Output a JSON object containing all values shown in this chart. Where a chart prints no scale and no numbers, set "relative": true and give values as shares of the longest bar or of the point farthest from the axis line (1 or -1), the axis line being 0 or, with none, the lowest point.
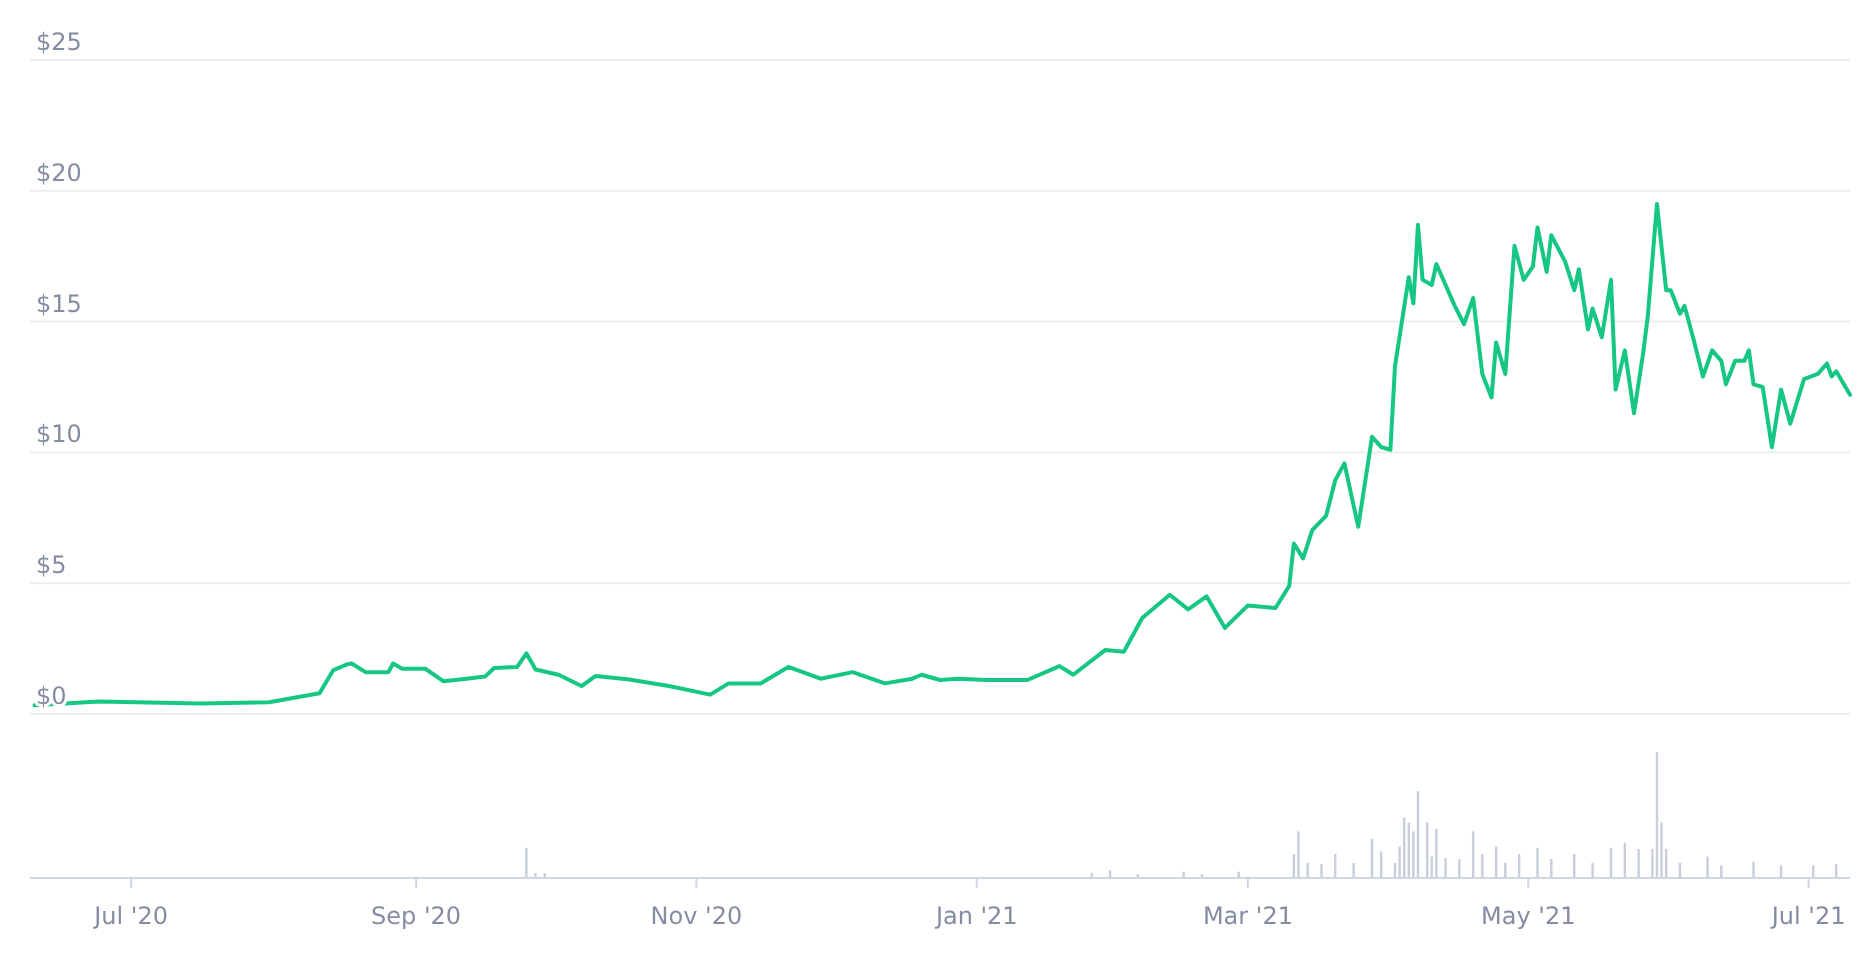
{
  "chart_data": [
    {
      "type": "line",
      "xlim": [
        "2020-06-09",
        "2021-07-10"
      ],
      "ylim": [
        0,
        25
      ],
      "yticks": [
        {
          "value": 0,
          "label": "$0"
        },
        {
          "value": 5,
          "label": "$5"
        },
        {
          "value": 10,
          "label": "$10"
        },
        {
          "value": 15,
          "label": "$15"
        },
        {
          "value": 20,
          "label": "$20"
        },
        {
          "value": 25,
          "label": "$25"
        }
      ],
      "grid": "y",
      "tick_labels": "y",
      "series": [
        {
          "color": "#16c784",
          "x": [
            "2020-06-10",
            "2020-06-24",
            "2020-07-16",
            "2020-07-31",
            "2020-08-11",
            "2020-08-14",
            "2020-08-17",
            "2020-08-18",
            "2020-08-21",
            "2020-08-26",
            "2020-08-27",
            "2020-08-29",
            "2020-09-03",
            "2020-09-07",
            "2020-09-12",
            "2020-09-16",
            "2020-09-18",
            "2020-09-23",
            "2020-09-25",
            "2020-09-27",
            "2020-10-02",
            "2020-10-07",
            "2020-10-10",
            "2020-10-17",
            "2020-10-26",
            "2020-11-04",
            "2020-11-08",
            "2020-11-15",
            "2020-11-21",
            "2020-11-28",
            "2020-12-05",
            "2020-12-12",
            "2020-12-18",
            "2020-12-20",
            "2020-12-24",
            "2020-12-28",
            "2021-01-03",
            "2021-01-12",
            "2021-01-19",
            "2021-01-22",
            "2021-01-29",
            "2021-02-02",
            "2021-02-06",
            "2021-02-12",
            "2021-02-16",
            "2021-02-20",
            "2021-02-24",
            "2021-03-01",
            "2021-03-07",
            "2021-03-10",
            "2021-03-11",
            "2021-03-13",
            "2021-03-15",
            "2021-03-18",
            "2021-03-20",
            "2021-03-22",
            "2021-03-25",
            "2021-03-28",
            "2021-03-30",
            "2021-04-01",
            "2021-04-02",
            "2021-04-05",
            "2021-04-06",
            "2021-04-07",
            "2021-04-08",
            "2021-04-10",
            "2021-04-11",
            "2021-04-15",
            "2021-04-17",
            "2021-04-19",
            "2021-04-21",
            "2021-04-23",
            "2021-04-24",
            "2021-04-26",
            "2021-04-28",
            "2021-04-30",
            "2021-05-02",
            "2021-05-03",
            "2021-05-05",
            "2021-05-06",
            "2021-05-09",
            "2021-05-11",
            "2021-05-12",
            "2021-05-14",
            "2021-05-15",
            "2021-05-17",
            "2021-05-19",
            "2021-05-20",
            "2021-05-22",
            "2021-05-24",
            "2021-05-26",
            "2021-05-27",
            "2021-05-29",
            "2021-05-31",
            "2021-06-01",
            "2021-06-03",
            "2021-06-04",
            "2021-06-06",
            "2021-06-08",
            "2021-06-10",
            "2021-06-12",
            "2021-06-13",
            "2021-06-15",
            "2021-06-17",
            "2021-06-18",
            "2021-06-19",
            "2021-06-21",
            "2021-06-23",
            "2021-06-25",
            "2021-06-27",
            "2021-06-30",
            "2021-07-03",
            "2021-07-05",
            "2021-07-06",
            "2021-07-07",
            "2021-07-10"
          ],
          "values": [
            0.33,
            0.48,
            0.4,
            0.45,
            0.79,
            1.68,
            1.9,
            1.93,
            1.6,
            1.6,
            1.93,
            1.73,
            1.73,
            1.25,
            1.35,
            1.43,
            1.76,
            1.8,
            2.32,
            1.7,
            1.5,
            1.07,
            1.45,
            1.33,
            1.07,
            0.74,
            1.17,
            1.17,
            1.8,
            1.35,
            1.6,
            1.17,
            1.35,
            1.5,
            1.3,
            1.35,
            1.3,
            1.3,
            1.83,
            1.5,
            2.45,
            2.38,
            3.67,
            4.56,
            4.0,
            4.5,
            3.29,
            4.15,
            4.05,
            4.9,
            6.52,
            5.95,
            7.03,
            7.57,
            8.94,
            9.58,
            7.16,
            10.6,
            10.2,
            10.1,
            13.3,
            16.7,
            15.7,
            18.7,
            16.6,
            16.4,
            17.2,
            15.6,
            14.9,
            15.9,
            13.0,
            12.1,
            14.2,
            13.0,
            17.9,
            16.6,
            17.1,
            18.6,
            16.9,
            18.3,
            17.3,
            16.2,
            17.0,
            14.7,
            15.5,
            14.4,
            16.6,
            12.4,
            13.9,
            11.5,
            13.8,
            15.2,
            19.5,
            16.2,
            16.2,
            15.3,
            15.6,
            14.3,
            12.9,
            13.9,
            13.5,
            12.6,
            13.5,
            13.5,
            13.9,
            12.6,
            12.5,
            10.2,
            12.4,
            11.1,
            12.8,
            13.0,
            13.4,
            12.9,
            13.1,
            12.2
          ]
        }
      ]
    },
    {
      "type": "bar",
      "relative": true,
      "color": "#c8cedb",
      "xlim": [
        "2020-06-09",
        "2021-07-10"
      ],
      "xticks": [
        {
          "value": "2020-07-01",
          "label": "Jul '20"
        },
        {
          "value": "2020-09-01",
          "label": "Sep '20"
        },
        {
          "value": "2020-11-01",
          "label": "Nov '20"
        },
        {
          "value": "2021-01-01",
          "label": "Jan '21"
        },
        {
          "value": "2021-03-01",
          "label": "Mar '21"
        },
        {
          "value": "2021-05-01",
          "label": "May '21"
        },
        {
          "value": "2021-07-01",
          "label": "Jul '21"
        }
      ],
      "tick_labels": "x",
      "x": [
        "2020-09-25",
        "2020-09-27",
        "2020-09-29",
        "2021-01-26",
        "2021-01-30",
        "2021-02-05",
        "2021-02-15",
        "2021-02-19",
        "2021-02-27",
        "2021-03-11",
        "2021-03-12",
        "2021-03-14",
        "2021-03-17",
        "2021-03-20",
        "2021-03-24",
        "2021-03-28",
        "2021-03-30",
        "2021-04-02",
        "2021-04-03",
        "2021-04-04",
        "2021-04-05",
        "2021-04-06",
        "2021-04-07",
        "2021-04-09",
        "2021-04-10",
        "2021-04-11",
        "2021-04-13",
        "2021-04-16",
        "2021-04-19",
        "2021-04-21",
        "2021-04-24",
        "2021-04-26",
        "2021-04-29",
        "2021-05-03",
        "2021-05-06",
        "2021-05-11",
        "2021-05-15",
        "2021-05-19",
        "2021-05-22",
        "2021-05-25",
        "2021-05-28",
        "2021-05-29",
        "2021-05-30",
        "2021-05-31",
        "2021-06-03",
        "2021-06-09",
        "2021-06-12",
        "2021-06-19",
        "2021-06-25",
        "2021-07-02",
        "2021-07-07"
      ],
      "values": [
        0.24,
        0.04,
        0.04,
        0.04,
        0.06,
        0.03,
        0.05,
        0.03,
        0.05,
        0.19,
        0.37,
        0.12,
        0.11,
        0.19,
        0.12,
        0.31,
        0.21,
        0.12,
        0.25,
        0.48,
        0.44,
        0.37,
        0.69,
        0.44,
        0.17,
        0.39,
        0.16,
        0.15,
        0.37,
        0.19,
        0.25,
        0.12,
        0.19,
        0.24,
        0.15,
        0.19,
        0.12,
        0.24,
        0.28,
        0.23,
        0.23,
        1.0,
        0.44,
        0.23,
        0.12,
        0.17,
        0.1,
        0.13,
        0.1,
        0.1,
        0.11
      ]
    }
  ]
}
